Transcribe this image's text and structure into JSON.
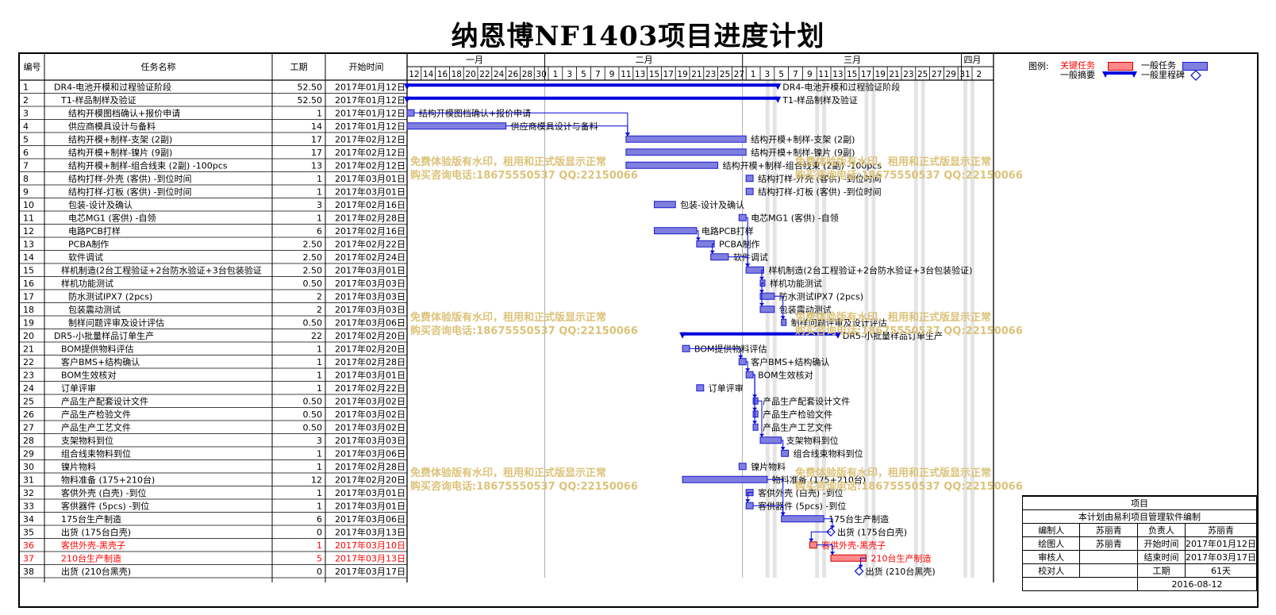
{
  "title": "纳恩博NF1403项目进度计划",
  "columns": {
    "id": "编号",
    "name": "任务名称",
    "duration": "工期",
    "start": "开始时间"
  },
  "months": [
    "一月",
    "二月",
    "三月",
    "四月"
  ],
  "day_ticks": [
    "12",
    "14",
    "16",
    "18",
    "20",
    "22",
    "24",
    "26",
    "28",
    "30",
    "1",
    "3",
    "5",
    "7",
    "9",
    "11",
    "13",
    "15",
    "17",
    "19",
    "21",
    "23",
    "25",
    "27",
    "1",
    "3",
    "5",
    "7",
    "9",
    "11",
    "13",
    "15",
    "17",
    "19",
    "21",
    "23",
    "25",
    "27",
    "29",
    "31",
    "2"
  ],
  "tasks": [
    {
      "id": "1",
      "name": "DR4-电池开模和过程验证阶段",
      "duration": "52.50",
      "start": "2017年01月12日",
      "indent": 0,
      "type": "summary",
      "s": 0,
      "d": 52.5,
      "label": "DR4-电池开模和过程验证阶段",
      "critical": false
    },
    {
      "id": "2",
      "name": "T1-样品制样及验证",
      "duration": "52.50",
      "start": "2017年01月12日",
      "indent": 1,
      "type": "summary",
      "s": 0,
      "d": 52.5,
      "label": "T1-样品制样及验证",
      "critical": false
    },
    {
      "id": "3",
      "name": "结构开模图档确认+报价申请",
      "duration": "1",
      "start": "2017年01月12日",
      "indent": 2,
      "type": "task",
      "s": 0,
      "d": 1,
      "label": "结构开模图档确认+报价申请",
      "critical": false
    },
    {
      "id": "4",
      "name": "供应商模具设计与备料",
      "duration": "14",
      "start": "2017年01月12日",
      "indent": 2,
      "type": "task",
      "s": 0,
      "d": 14,
      "label": "供应商模具设计与备料",
      "critical": false
    },
    {
      "id": "5",
      "name": "结构开模+制样-支架 (2副)",
      "duration": "17",
      "start": "2017年02月12日",
      "indent": 2,
      "type": "task",
      "s": 31,
      "d": 17,
      "label": "结构开模+制样-支架 (2副)",
      "critical": false
    },
    {
      "id": "6",
      "name": "结构开模+制样-镍片 (9副)",
      "duration": "17",
      "start": "2017年02月12日",
      "indent": 2,
      "type": "task",
      "s": 31,
      "d": 17,
      "label": "结构开模+制样-镍片 (9副)",
      "critical": false
    },
    {
      "id": "7",
      "name": "结构开模+制样-组合线束 (2副) -100pcs",
      "duration": "13",
      "start": "2017年02月12日",
      "indent": 2,
      "type": "task",
      "s": 31,
      "d": 13,
      "label": "结构开模+制样-组合线束 (2副) -100pcs",
      "critical": false
    },
    {
      "id": "8",
      "name": "结构打样-外壳 (客供) -到位时间",
      "duration": "1",
      "start": "2017年03月01日",
      "indent": 2,
      "type": "task",
      "s": 48,
      "d": 1,
      "label": "结构打样-外壳 (客供) -到位时间",
      "critical": false
    },
    {
      "id": "9",
      "name": "结构打样-灯板 (客供) -到位时间",
      "duration": "1",
      "start": "2017年03月01日",
      "indent": 2,
      "type": "task",
      "s": 48,
      "d": 1,
      "label": "结构打样-灯板 (客供) -到位时间",
      "critical": false
    },
    {
      "id": "10",
      "name": "包装-设计及确认",
      "duration": "3",
      "start": "2017年02月16日",
      "indent": 2,
      "type": "task",
      "s": 35,
      "d": 3,
      "label": "包装-设计及确认",
      "critical": false
    },
    {
      "id": "11",
      "name": "电芯MG1 (客供) -自领",
      "duration": "1",
      "start": "2017年02月28日",
      "indent": 2,
      "type": "task",
      "s": 47,
      "d": 1,
      "label": "电芯MG1 (客供) -自领",
      "critical": false
    },
    {
      "id": "12",
      "name": "电路PCB打样",
      "duration": "6",
      "start": "2017年02月16日",
      "indent": 2,
      "type": "task",
      "s": 35,
      "d": 6,
      "label": "电路PCB打样",
      "critical": false
    },
    {
      "id": "13",
      "name": "PCBA制作",
      "duration": "2.50",
      "start": "2017年02月22日",
      "indent": 2,
      "type": "task",
      "s": 41,
      "d": 2.5,
      "label": "PCBA制作",
      "critical": false
    },
    {
      "id": "14",
      "name": "软件调试",
      "duration": "2.50",
      "start": "2017年02月24日",
      "indent": 2,
      "type": "task",
      "s": 43,
      "d": 2.5,
      "label": "软件调试",
      "critical": false
    },
    {
      "id": "15",
      "name": "样机制造(2台工程验证+2台防水验证+3台包装验证",
      "duration": "2.50",
      "start": "2017年03月01日",
      "indent": 1,
      "type": "task",
      "s": 48,
      "d": 2.5,
      "label": "样机制造(2台工程验证+2台防水验证+3台包装验证)",
      "critical": false
    },
    {
      "id": "16",
      "name": "样机功能测试",
      "duration": "0.50",
      "start": "2017年03月03日",
      "indent": 1,
      "type": "task",
      "s": 50,
      "d": 0.5,
      "label": "样机功能测试",
      "critical": false
    },
    {
      "id": "17",
      "name": "防水测试IPX7 (2pcs)",
      "duration": "2",
      "start": "2017年03月03日",
      "indent": 2,
      "type": "task",
      "s": 50,
      "d": 2,
      "label": "防水测试IPX7 (2pcs)",
      "critical": false
    },
    {
      "id": "18",
      "name": "包装震动测试",
      "duration": "2",
      "start": "2017年03月03日",
      "indent": 2,
      "type": "task",
      "s": 50,
      "d": 2,
      "label": "包装震动测试",
      "critical": false
    },
    {
      "id": "19",
      "name": "制样问题评审及设计评估",
      "duration": "0.50",
      "start": "2017年03月06日",
      "indent": 2,
      "type": "task",
      "s": 53,
      "d": 0.5,
      "label": "制样问题评审及设计评估",
      "critical": false
    },
    {
      "id": "20",
      "name": "DR5-小批量样品订单生产",
      "duration": "22",
      "start": "2017年02月20日",
      "indent": 0,
      "type": "summary",
      "s": 39,
      "d": 22,
      "label": "DR5-小批量样品订单生产",
      "critical": false
    },
    {
      "id": "21",
      "name": "BOM提供物料评估",
      "duration": "1",
      "start": "2017年02月20日",
      "indent": 1,
      "type": "task",
      "s": 39,
      "d": 1,
      "label": "BOM提供物料评估",
      "critical": false
    },
    {
      "id": "22",
      "name": "客户BMS+结构确认",
      "duration": "1",
      "start": "2017年02月28日",
      "indent": 1,
      "type": "task",
      "s": 47,
      "d": 1,
      "label": "客户BMS+结构确认",
      "critical": false
    },
    {
      "id": "23",
      "name": "BOM生效核对",
      "duration": "1",
      "start": "2017年03月01日",
      "indent": 1,
      "type": "task",
      "s": 48,
      "d": 1,
      "label": "BOM生效核对",
      "critical": false
    },
    {
      "id": "24",
      "name": "订单评审",
      "duration": "1",
      "start": "2017年02月22日",
      "indent": 1,
      "type": "task",
      "s": 41,
      "d": 1,
      "label": "订单评审",
      "critical": false
    },
    {
      "id": "25",
      "name": "产品生产配套设计文件",
      "duration": "0.50",
      "start": "2017年03月02日",
      "indent": 1,
      "type": "task",
      "s": 49,
      "d": 0.5,
      "label": "产品生产配套设计文件",
      "critical": false
    },
    {
      "id": "26",
      "name": "产品生产检验文件",
      "duration": "0.50",
      "start": "2017年03月02日",
      "indent": 1,
      "type": "task",
      "s": 49,
      "d": 0.5,
      "label": "产品生产检验文件",
      "critical": false
    },
    {
      "id": "27",
      "name": "产品生产工艺文件",
      "duration": "0.50",
      "start": "2017年03月02日",
      "indent": 1,
      "type": "task",
      "s": 49,
      "d": 0.5,
      "label": "产品生产工艺文件",
      "critical": false
    },
    {
      "id": "28",
      "name": "支架物料到位",
      "duration": "3",
      "start": "2017年03月03日",
      "indent": 1,
      "type": "task",
      "s": 50,
      "d": 3,
      "label": "支架物料到位",
      "critical": false
    },
    {
      "id": "29",
      "name": "组合线束物料到位",
      "duration": "1",
      "start": "2017年03月06日",
      "indent": 1,
      "type": "task",
      "s": 53,
      "d": 1,
      "label": "组合线束物料到位",
      "critical": false
    },
    {
      "id": "30",
      "name": "镍片物料",
      "duration": "1",
      "start": "2017年02月28日",
      "indent": 1,
      "type": "task",
      "s": 47,
      "d": 1,
      "label": "镍片物料",
      "critical": false
    },
    {
      "id": "31",
      "name": "物料准备 (175+210台)",
      "duration": "12",
      "start": "2017年02月20日",
      "indent": 1,
      "type": "task",
      "s": 39,
      "d": 12,
      "label": "物料准备 (175+210台)",
      "critical": false
    },
    {
      "id": "32",
      "name": "客供外壳 (白壳) -到位",
      "duration": "1",
      "start": "2017年03月01日",
      "indent": 1,
      "type": "task",
      "s": 48,
      "d": 1,
      "label": "客供外壳 (白壳) -到位",
      "critical": false
    },
    {
      "id": "33",
      "name": "客供器件 (5pcs) -到位",
      "duration": "1",
      "start": "2017年03月01日",
      "indent": 1,
      "type": "task",
      "s": 48,
      "d": 1,
      "label": "客供器件 (5pcs) -到位",
      "critical": false
    },
    {
      "id": "34",
      "name": "175台生产制造",
      "duration": "6",
      "start": "2017年03月06日",
      "indent": 1,
      "type": "task",
      "s": 53,
      "d": 6,
      "label": "175台生产制造",
      "critical": false
    },
    {
      "id": "35",
      "name": "出货 (175台白壳)",
      "duration": "0",
      "start": "2017年03月13日",
      "indent": 1,
      "type": "milestone",
      "s": 60,
      "d": 0,
      "label": "出货 (175台白壳)",
      "critical": false
    },
    {
      "id": "36",
      "name": "客供外壳-黑壳子",
      "duration": "1",
      "start": "2017年03月10日",
      "indent": 1,
      "type": "task",
      "s": 57,
      "d": 1,
      "label": "客供外壳-黑壳子",
      "critical": true
    },
    {
      "id": "37",
      "name": "210台生产制造",
      "duration": "5",
      "start": "2017年03月13日",
      "indent": 1,
      "type": "task",
      "s": 60,
      "d": 5,
      "label": "210台生产制造",
      "critical": true
    },
    {
      "id": "38",
      "name": "出货 (210台黑壳)",
      "duration": "0",
      "start": "2017年03月17日",
      "indent": 1,
      "type": "milestone",
      "s": 64,
      "d": 0,
      "label": "出货 (210台黑壳)",
      "critical": false
    }
  ],
  "watermark": {
    "line1": "免费体验版有水印，租用和正式版显示正常",
    "line2": "购买咨询电话:18675550537 QQ:22150066"
  },
  "legend": {
    "title": "图例:",
    "critical": "关键任务",
    "normal": "一般任务",
    "summary": "一般摘要",
    "milestone": "一般里程碑"
  },
  "info": {
    "project_label": "项目",
    "software_note": "本计划由易利项目管理软件编制",
    "rows": [
      [
        "编制人",
        "苏丽青",
        "负责人",
        "苏丽青"
      ],
      [
        "绘图人",
        "苏丽青",
        "开始时间",
        "2017年01月12日"
      ],
      [
        "审核人",
        "",
        "结束时间",
        "2017年03月17日"
      ],
      [
        "校对人",
        "",
        "工期",
        "61天"
      ]
    ],
    "date": "2016-08-12"
  },
  "colors": {
    "task_fill": "#7f7fe0",
    "task_border": "#1a1acc",
    "summary": "#0000dd",
    "critical": "#ff0000",
    "link": "#0000dd",
    "grid": "#000000"
  }
}
